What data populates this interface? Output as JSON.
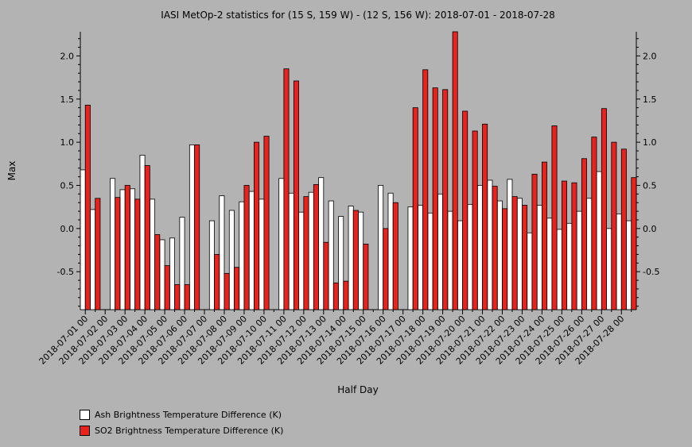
{
  "chart_data": {
    "type": "bar",
    "title": "IASI MetOp-2 statistics for (15 S, 159 W) - (12 S, 156 W): 2018-07-01 - 2018-07-28",
    "xlabel": "Half Day",
    "ylabel": "Max",
    "ylim": [
      -0.94,
      2.28
    ],
    "yticks": [
      -0.5,
      0.0,
      0.5,
      1.0,
      1.5,
      2.0
    ],
    "ytick_labels": [
      "-0.5",
      "0.0",
      "0.5",
      "1.0",
      "1.5",
      "2.0"
    ],
    "date_labels": [
      "2018-07-01 00",
      "2018-07-02 00",
      "2018-07-03 00",
      "2018-07-04 00",
      "2018-07-05 00",
      "2018-07-06 00",
      "2018-07-07 00",
      "2018-07-08 00",
      "2018-07-09 00",
      "2018-07-10 00",
      "2018-07-11 00",
      "2018-07-12 00",
      "2018-07-13 00",
      "2018-07-14 00",
      "2018-07-15 00",
      "2018-07-16 00",
      "2018-07-17 00",
      "2018-07-18 00",
      "2018-07-19 00",
      "2018-07-20 00",
      "2018-07-21 00",
      "2018-07-22 00",
      "2018-07-23 00",
      "2018-07-24 00",
      "2018-07-25 00",
      "2018-07-26 00",
      "2018-07-27 00",
      "2018-07-28 00"
    ],
    "grid": false,
    "legend_position": "bottom-left",
    "series": [
      {
        "name": "Ash Brightness Temperature Difference (K)",
        "color": "#ffffff",
        "values": [
          0.68,
          0.22,
          null,
          0.58,
          0.45,
          0.46,
          0.85,
          0.34,
          -0.13,
          -0.11,
          0.13,
          0.97,
          null,
          0.09,
          0.38,
          0.21,
          0.31,
          0.43,
          0.34,
          null,
          0.58,
          0.41,
          0.19,
          0.42,
          0.59,
          0.32,
          0.14,
          0.26,
          0.19,
          null,
          0.5,
          0.41,
          null,
          0.25,
          0.27,
          0.18,
          0.4,
          0.2,
          0.09,
          0.28,
          0.5,
          0.56,
          0.32,
          0.57,
          0.35,
          -0.05,
          0.27,
          0.12,
          -0.01,
          0.06,
          0.2,
          0.35,
          0.66,
          0.0,
          0.17,
          0.09
        ]
      },
      {
        "name": "SO2 Brightness Temperature Difference (K)",
        "color": "#e8231e",
        "values": [
          1.43,
          0.35,
          null,
          0.36,
          0.5,
          0.34,
          0.73,
          -0.07,
          -0.43,
          -0.65,
          -0.65,
          0.97,
          null,
          -0.3,
          -0.52,
          -0.45,
          0.5,
          1.0,
          1.07,
          null,
          1.85,
          1.71,
          0.37,
          0.51,
          -0.16,
          -0.63,
          -0.61,
          0.21,
          -0.18,
          null,
          0.0,
          0.3,
          null,
          1.4,
          1.84,
          1.63,
          1.61,
          2.28,
          1.36,
          1.13,
          1.21,
          0.49,
          0.23,
          0.37,
          0.27,
          0.63,
          0.77,
          1.19,
          0.55,
          0.53,
          0.81,
          1.06,
          1.39,
          1.0,
          0.92,
          0.59
        ]
      }
    ]
  }
}
